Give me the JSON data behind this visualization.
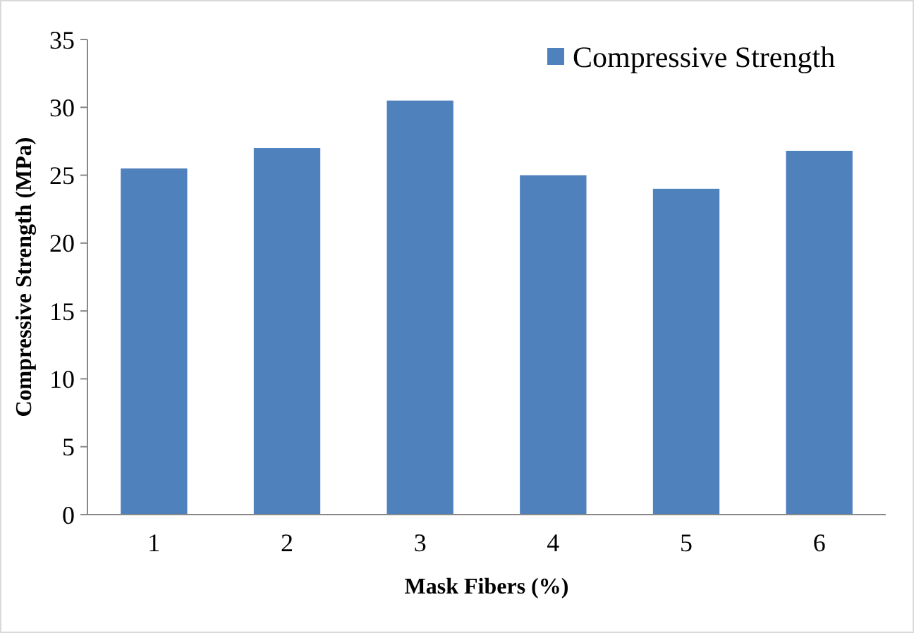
{
  "chart_data": {
    "type": "bar",
    "xlabel": "Mask Fibers (%)",
    "ylabel": "Compressive Strength (MPa)",
    "categories": [
      "1",
      "2",
      "3",
      "4",
      "5",
      "6"
    ],
    "series": [
      {
        "name": "Compressive Strength",
        "color": "#4f81bd",
        "values": [
          25.5,
          27,
          30.5,
          25,
          24,
          26.8
        ]
      }
    ],
    "ylim": [
      0,
      35
    ],
    "yticks": [
      0,
      5,
      10,
      15,
      20,
      25,
      30,
      35
    ],
    "grid": false,
    "legend": "top right"
  }
}
